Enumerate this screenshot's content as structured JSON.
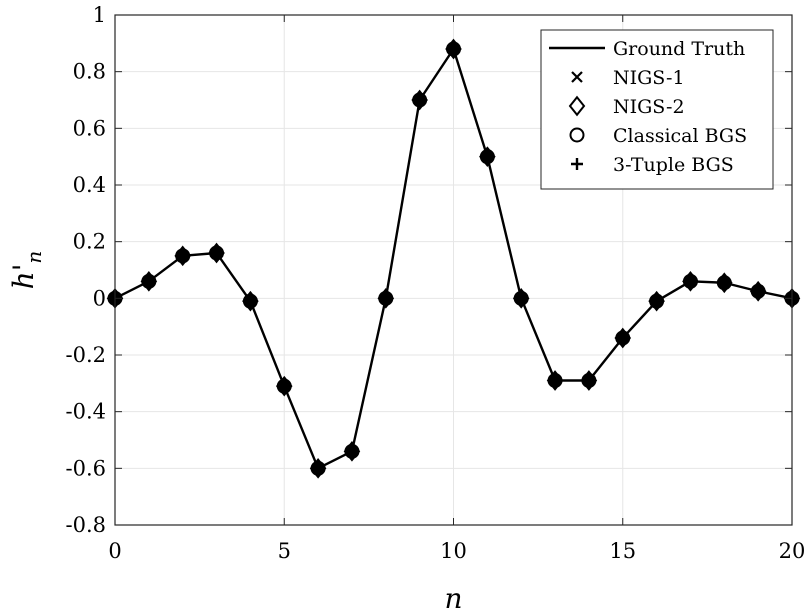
{
  "chart_data": {
    "type": "line",
    "xlabel": "n",
    "ylabel": "h'n",
    "xlim": [
      0,
      20
    ],
    "ylim": [
      -0.8,
      1
    ],
    "xticks": [
      0,
      5,
      10,
      15,
      20
    ],
    "yticks": [
      -0.8,
      -0.6,
      -0.4,
      -0.2,
      0,
      0.2,
      0.4,
      0.6,
      0.8,
      1
    ],
    "xtick_labels": [
      "0",
      "5",
      "10",
      "15",
      "20"
    ],
    "ytick_labels": [
      "-0.8",
      "-0.6",
      "-0.4",
      "-0.2",
      "0",
      "0.2",
      "0.4",
      "0.6",
      "0.8",
      "1"
    ],
    "grid": true,
    "legend_position": "top-right",
    "x": [
      0,
      1,
      2,
      3,
      4,
      5,
      6,
      7,
      8,
      9,
      10,
      11,
      12,
      13,
      14,
      15,
      16,
      17,
      18,
      19,
      20
    ],
    "series": [
      {
        "name": "Ground Truth",
        "style": "line",
        "color": "#000000",
        "values": [
          0,
          0.06,
          0.15,
          0.16,
          -0.01,
          -0.31,
          -0.6,
          -0.54,
          0.0,
          0.7,
          0.88,
          0.5,
          0.0,
          -0.29,
          -0.29,
          -0.14,
          -0.01,
          0.06,
          0.055,
          0.025,
          0.0
        ]
      },
      {
        "name": "NIGS-1",
        "style": "x-marker",
        "color": "#000000",
        "values": [
          0,
          0.06,
          0.15,
          0.16,
          -0.01,
          -0.31,
          -0.6,
          -0.54,
          0.0,
          0.7,
          0.88,
          0.5,
          0.0,
          -0.29,
          -0.29,
          -0.14,
          -0.01,
          0.06,
          0.055,
          0.025,
          0.0
        ]
      },
      {
        "name": "NIGS-2",
        "style": "diamond-marker",
        "color": "#000000",
        "values": [
          0,
          0.06,
          0.15,
          0.16,
          -0.01,
          -0.31,
          -0.6,
          -0.54,
          0.0,
          0.7,
          0.88,
          0.5,
          0.0,
          -0.29,
          -0.29,
          -0.14,
          -0.01,
          0.06,
          0.055,
          0.025,
          0.0
        ]
      },
      {
        "name": "Classical BGS",
        "style": "circle-marker",
        "color": "#000000",
        "values": [
          0,
          0.06,
          0.15,
          0.16,
          -0.01,
          -0.31,
          -0.6,
          -0.54,
          0.0,
          0.7,
          0.88,
          0.5,
          0.0,
          -0.29,
          -0.29,
          -0.14,
          -0.01,
          0.06,
          0.055,
          0.025,
          0.0
        ]
      },
      {
        "name": "3-Tuple BGS",
        "style": "plus-marker",
        "color": "#000000",
        "values": [
          0,
          0.06,
          0.15,
          0.16,
          -0.01,
          -0.31,
          -0.6,
          -0.54,
          0.0,
          0.7,
          0.88,
          0.5,
          0.0,
          -0.29,
          -0.29,
          -0.14,
          -0.01,
          0.06,
          0.055,
          0.025,
          0.0
        ]
      }
    ]
  }
}
